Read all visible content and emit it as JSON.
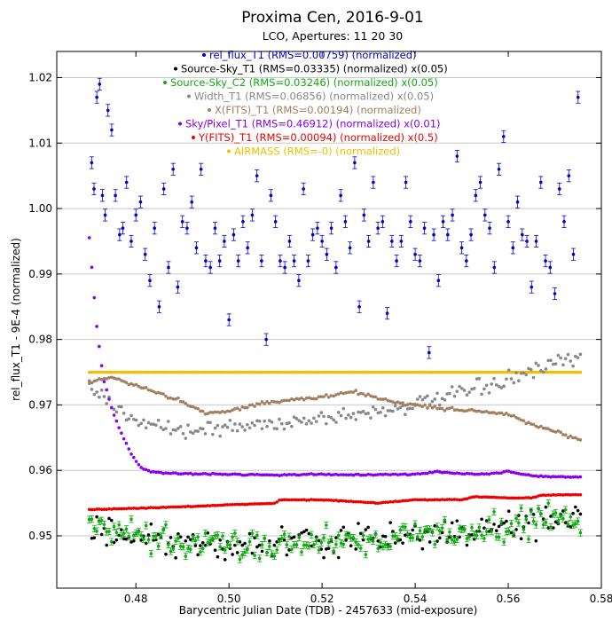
{
  "chart_data": {
    "type": "scatter",
    "title": "Proxima Cen, 2016-9-01",
    "subtitle": "LCO, Apertures: 11 20 30",
    "xlabel": "Barycentric Julian Date (TDB) - 2457633 (mid-exposure)",
    "ylabel": "rel_flux_T1 - 9E-4 (normalized)",
    "xlim": [
      0.463,
      0.58
    ],
    "ylim": [
      0.942,
      1.024
    ],
    "x_ticks": [
      0.48,
      0.5,
      0.52,
      0.54,
      0.56,
      0.58
    ],
    "x_tick_labels": [
      "0.48",
      "0.50",
      "0.52",
      "0.54",
      "0.56",
      "0.58"
    ],
    "y_ticks": [
      0.95,
      0.96,
      0.97,
      0.98,
      0.99,
      1.0,
      1.01,
      1.02
    ],
    "y_tick_labels": [
      "0.95",
      "0.96",
      "0.97",
      "0.98",
      "0.99",
      "1.00",
      "1.01",
      "1.02"
    ],
    "grid": "horizontal",
    "legend_position": "top-center",
    "series": [
      {
        "name": "rel_flux_T1 (RMS=0.00759) (normalized)",
        "color": "#0000cc",
        "marker": "dot-errorbar",
        "x": [
          0.4705,
          0.471,
          0.4716,
          0.4722,
          0.4728,
          0.4734,
          0.474,
          0.4748,
          0.4756,
          0.4765,
          0.4772,
          0.478,
          0.479,
          0.48,
          0.481,
          0.482,
          0.483,
          0.484,
          0.485,
          0.486,
          0.487,
          0.488,
          0.489,
          0.49,
          0.491,
          0.492,
          0.493,
          0.494,
          0.495,
          0.496,
          0.497,
          0.498,
          0.499,
          0.5,
          0.501,
          0.502,
          0.503,
          0.504,
          0.505,
          0.506,
          0.507,
          0.508,
          0.509,
          0.51,
          0.511,
          0.512,
          0.513,
          0.514,
          0.515,
          0.516,
          0.517,
          0.518,
          0.519,
          0.52,
          0.521,
          0.522,
          0.523,
          0.524,
          0.525,
          0.526,
          0.527,
          0.528,
          0.529,
          0.53,
          0.531,
          0.532,
          0.533,
          0.534,
          0.535,
          0.536,
          0.537,
          0.538,
          0.539,
          0.54,
          0.541,
          0.542,
          0.543,
          0.544,
          0.545,
          0.546,
          0.547,
          0.548,
          0.549,
          0.55,
          0.551,
          0.552,
          0.553,
          0.554,
          0.555,
          0.556,
          0.557,
          0.558,
          0.559,
          0.56,
          0.561,
          0.562,
          0.563,
          0.564,
          0.565,
          0.566,
          0.567,
          0.568,
          0.569,
          0.57,
          0.571,
          0.572,
          0.573,
          0.574,
          0.575
        ],
        "y": [
          1.007,
          1.003,
          1.017,
          1.019,
          1.002,
          0.999,
          1.015,
          1.012,
          1.002,
          0.996,
          0.997,
          1.004,
          0.995,
          0.999,
          1.001,
          0.993,
          0.989,
          0.997,
          0.985,
          1.003,
          0.991,
          1.006,
          0.988,
          0.998,
          0.997,
          1.001,
          0.994,
          1.006,
          0.992,
          0.991,
          0.997,
          0.992,
          0.995,
          0.983,
          0.996,
          0.992,
          0.998,
          0.994,
          0.999,
          1.005,
          0.992,
          0.98,
          1.002,
          0.998,
          0.992,
          0.991,
          0.995,
          0.992,
          0.989,
          1.003,
          0.992,
          0.996,
          0.997,
          0.995,
          0.993,
          0.997,
          0.991,
          1.002,
          0.998,
          0.994,
          1.007,
          0.985,
          0.999,
          0.995,
          1.004,
          0.997,
          0.998,
          0.984,
          0.995,
          0.992,
          0.995,
          1.004,
          0.998,
          0.993,
          0.992,
          0.997,
          0.978,
          0.996,
          0.989,
          0.998,
          0.996,
          0.999,
          1.008,
          0.994,
          0.992,
          0.996,
          1.002,
          1.004,
          0.999,
          0.997,
          0.991,
          1.006,
          1.011,
          0.998,
          0.994,
          1.001,
          0.996,
          0.995,
          0.988,
          0.995,
          1.004,
          0.992,
          0.991,
          0.987,
          1.003,
          0.998,
          1.005,
          0.993,
          1.017
        ],
        "err": 0.0009
      },
      {
        "name": "Source-Sky_T1 (RMS=0.03335) (normalized) x(0.05)",
        "color": "#000000",
        "marker": "dot",
        "x_start": 0.47,
        "x_end": 0.5755,
        "count": 200,
        "trend": [
          [
            0.47,
            0.951
          ],
          [
            0.48,
            0.9495
          ],
          [
            0.49,
            0.9485
          ],
          [
            0.5,
            0.9485
          ],
          [
            0.51,
            0.9488
          ],
          [
            0.52,
            0.949
          ],
          [
            0.53,
            0.9495
          ],
          [
            0.54,
            0.95
          ],
          [
            0.55,
            0.9505
          ],
          [
            0.56,
            0.9515
          ],
          [
            0.57,
            0.9525
          ],
          [
            0.5755,
            0.953
          ]
        ],
        "scatter": 0.0022
      },
      {
        "name": "Source-Sky_C2 (RMS=0.03246) (normalized) x(0.05)",
        "color": "#11aa11",
        "marker": "dot-errorbar",
        "x_start": 0.47,
        "x_end": 0.5755,
        "count": 200,
        "trend": [
          [
            0.47,
            0.9515
          ],
          [
            0.48,
            0.9498
          ],
          [
            0.49,
            0.9487
          ],
          [
            0.5,
            0.9486
          ],
          [
            0.51,
            0.9489
          ],
          [
            0.52,
            0.9491
          ],
          [
            0.53,
            0.9496
          ],
          [
            0.54,
            0.9501
          ],
          [
            0.55,
            0.9506
          ],
          [
            0.56,
            0.9516
          ],
          [
            0.57,
            0.9526
          ],
          [
            0.5755,
            0.953
          ]
        ],
        "scatter": 0.0022
      },
      {
        "name": "Width_T1 (RMS=0.06856) (normalized) x(0.05)",
        "color": "#888888",
        "marker": "dot",
        "x_start": 0.47,
        "x_end": 0.5755,
        "count": 200,
        "trend": [
          [
            0.47,
            0.973
          ],
          [
            0.475,
            0.9695
          ],
          [
            0.48,
            0.968
          ],
          [
            0.49,
            0.966
          ],
          [
            0.5,
            0.9665
          ],
          [
            0.51,
            0.9672
          ],
          [
            0.52,
            0.968
          ],
          [
            0.53,
            0.9688
          ],
          [
            0.54,
            0.97
          ],
          [
            0.55,
            0.9718
          ],
          [
            0.56,
            0.9738
          ],
          [
            0.57,
            0.9762
          ],
          [
            0.5755,
            0.9772
          ]
        ],
        "scatter": 0.0012
      },
      {
        "name": "X(FITS)_T1 (RMS=0.00194) (normalized)",
        "color": "#a08060",
        "marker": "dot",
        "x_start": 0.47,
        "x_end": 0.5755,
        "count": 200,
        "trend": [
          [
            0.47,
            0.9735
          ],
          [
            0.475,
            0.9742
          ],
          [
            0.48,
            0.973
          ],
          [
            0.49,
            0.9705
          ],
          [
            0.495,
            0.9688
          ],
          [
            0.5,
            0.969
          ],
          [
            0.505,
            0.97
          ],
          [
            0.51,
            0.9705
          ],
          [
            0.52,
            0.9712
          ],
          [
            0.527,
            0.972
          ],
          [
            0.535,
            0.9705
          ],
          [
            0.545,
            0.9695
          ],
          [
            0.555,
            0.969
          ],
          [
            0.56,
            0.9685
          ],
          [
            0.565,
            0.967
          ],
          [
            0.57,
            0.966
          ],
          [
            0.5755,
            0.9645
          ]
        ],
        "scatter": 0.00025
      },
      {
        "name": "Sky/Pixel_T1 (RMS=0.46912) (normalized) x(0.01)",
        "color": "#8800ee",
        "marker": "dot",
        "x_start": 0.47,
        "x_end": 0.5755,
        "count": 200,
        "trend": [
          [
            0.47,
            0.9955
          ],
          [
            0.4715,
            0.9825
          ],
          [
            0.473,
            0.974
          ],
          [
            0.475,
            0.969
          ],
          [
            0.477,
            0.9655
          ],
          [
            0.479,
            0.9625
          ],
          [
            0.481,
            0.9605
          ],
          [
            0.483,
            0.9598
          ],
          [
            0.486,
            0.9596
          ],
          [
            0.49,
            0.9595
          ],
          [
            0.5,
            0.9594
          ],
          [
            0.51,
            0.9593
          ],
          [
            0.52,
            0.9594
          ],
          [
            0.53,
            0.9593
          ],
          [
            0.54,
            0.9594
          ],
          [
            0.545,
            0.9598
          ],
          [
            0.55,
            0.9595
          ],
          [
            0.555,
            0.9594
          ],
          [
            0.56,
            0.9598
          ],
          [
            0.565,
            0.9592
          ],
          [
            0.57,
            0.959
          ],
          [
            0.5755,
            0.959
          ]
        ],
        "scatter": 0.0001
      },
      {
        "name": "Y(FITS)_T1 (RMS=0.00094) (normalized) x(0.5)",
        "color": "#ee0000",
        "marker": "dot",
        "x_start": 0.47,
        "x_end": 0.5755,
        "count": 200,
        "trend": [
          [
            0.47,
            0.954
          ],
          [
            0.48,
            0.9542
          ],
          [
            0.492,
            0.9545
          ],
          [
            0.503,
            0.9548
          ],
          [
            0.51,
            0.955
          ],
          [
            0.511,
            0.9555
          ],
          [
            0.52,
            0.9555
          ],
          [
            0.532,
            0.955
          ],
          [
            0.535,
            0.9552
          ],
          [
            0.54,
            0.9555
          ],
          [
            0.55,
            0.9555
          ],
          [
            0.553,
            0.956
          ],
          [
            0.56,
            0.9558
          ],
          [
            0.565,
            0.9558
          ],
          [
            0.567,
            0.9562
          ],
          [
            0.5755,
            0.9563
          ]
        ],
        "scatter": 6e-05
      },
      {
        "name": "AIRMASS (RMS=-0) (normalized)",
        "color": "#f0c000",
        "marker": "dot",
        "x_start": 0.47,
        "x_end": 0.5755,
        "count": 200,
        "trend": [
          [
            0.47,
            0.975
          ],
          [
            0.5755,
            0.975
          ]
        ],
        "scatter": 0.0
      }
    ]
  }
}
